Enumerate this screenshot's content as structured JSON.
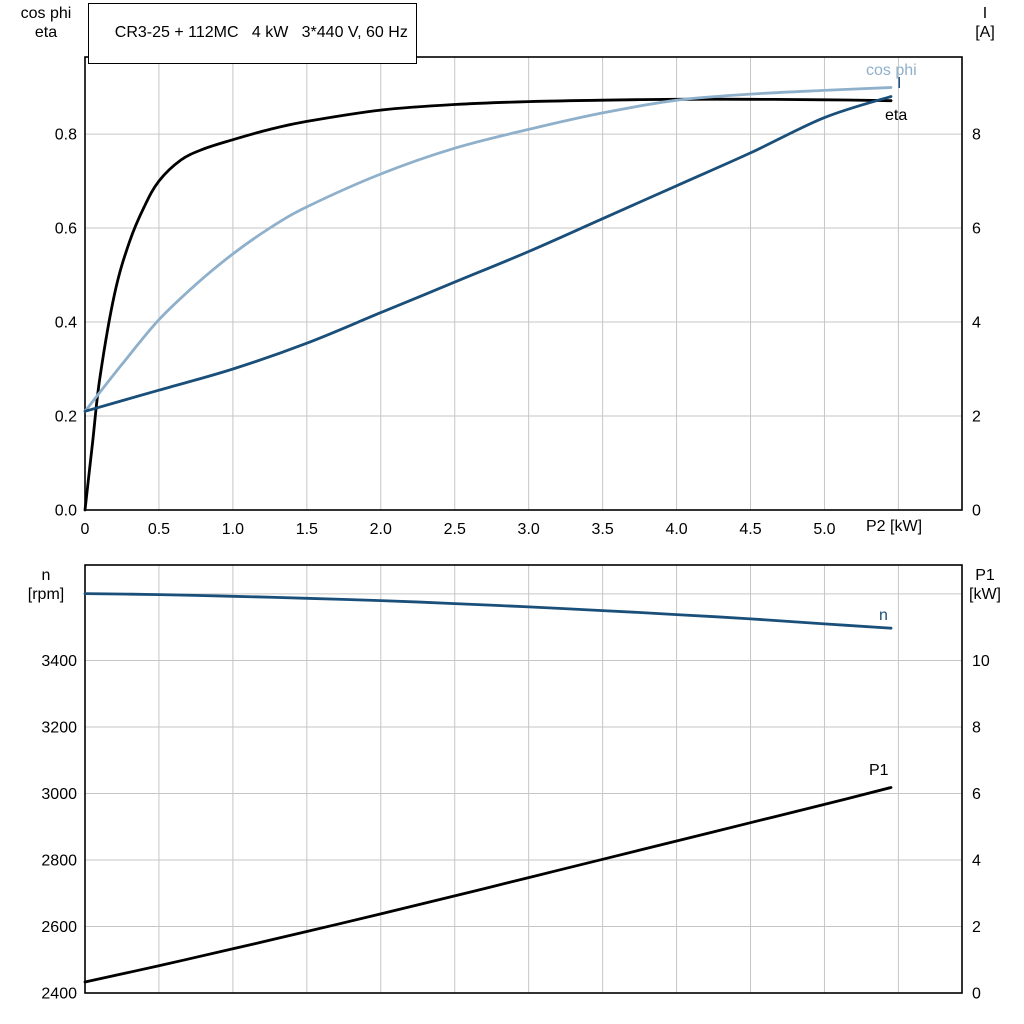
{
  "style": {
    "background": "#ffffff",
    "grid_color": "#c6c6c6",
    "frame_color": "#000000",
    "text_color": "#000000",
    "accent_dark_blue": "#1a4f7a",
    "accent_light_blue": "#8fb0cb"
  },
  "chart_data": [
    {
      "type": "line",
      "title": "CR3-25 + 112MC   4 kW   3*440 V, 60 Hz",
      "grid": true,
      "x_axis": {
        "label": "P2 [kW]",
        "min": 0,
        "max": 5.93,
        "ticks": [
          {
            "v": 0,
            "l": "0"
          },
          {
            "v": 0.5,
            "l": "0.5"
          },
          {
            "v": 1,
            "l": "1.0"
          },
          {
            "v": 1.5,
            "l": "1.5"
          },
          {
            "v": 2,
            "l": "2.0"
          },
          {
            "v": 2.5,
            "l": "2.5"
          },
          {
            "v": 3,
            "l": "3.0"
          },
          {
            "v": 3.5,
            "l": "3.5"
          },
          {
            "v": 4,
            "l": "4.0"
          },
          {
            "v": 4.5,
            "l": "4.5"
          },
          {
            "v": 5,
            "l": "5.0"
          },
          {
            "v": 5.5,
            "l": ""
          }
        ]
      },
      "y_left": {
        "header": [
          "cos phi",
          "eta"
        ],
        "min": 0,
        "max": 0.964,
        "ticks": [
          {
            "v": 0,
            "l": "0.0"
          },
          {
            "v": 0.2,
            "l": "0.2"
          },
          {
            "v": 0.4,
            "l": "0.4"
          },
          {
            "v": 0.6,
            "l": "0.6"
          },
          {
            "v": 0.8,
            "l": "0.8"
          }
        ]
      },
      "y_right": {
        "header": [
          "I",
          "[A]"
        ],
        "min": 0,
        "max": 9.64,
        "ticks": [
          {
            "v": 0,
            "l": "0"
          },
          {
            "v": 2,
            "l": "2"
          },
          {
            "v": 4,
            "l": "4"
          },
          {
            "v": 6,
            "l": "6"
          },
          {
            "v": 8,
            "l": "8"
          }
        ]
      },
      "series": [
        {
          "name": "eta",
          "axis": "left",
          "color": "#000000",
          "width": 2.8,
          "x": [
            0,
            0.05,
            0.1,
            0.2,
            0.3,
            0.4,
            0.5,
            0.65,
            0.8,
            1.0,
            1.25,
            1.5,
            2.0,
            2.5,
            3.0,
            3.5,
            4.0,
            4.5,
            5.0,
            5.45
          ],
          "y": [
            0,
            0.14,
            0.28,
            0.46,
            0.57,
            0.645,
            0.7,
            0.745,
            0.768,
            0.788,
            0.81,
            0.827,
            0.851,
            0.863,
            0.869,
            0.872,
            0.874,
            0.874,
            0.873,
            0.871
          ]
        },
        {
          "name": "cos phi",
          "axis": "left",
          "color": "#8fb0cb",
          "width": 2.8,
          "x": [
            0,
            0.25,
            0.5,
            0.75,
            1.0,
            1.25,
            1.5,
            2.0,
            2.5,
            3.0,
            3.5,
            4.0,
            4.5,
            5.0,
            5.45
          ],
          "y": [
            0.21,
            0.31,
            0.405,
            0.48,
            0.545,
            0.6,
            0.645,
            0.715,
            0.77,
            0.81,
            0.845,
            0.872,
            0.885,
            0.893,
            0.899
          ]
        },
        {
          "name": "I",
          "axis": "right",
          "color": "#1a4f7a",
          "width": 2.8,
          "x": [
            0,
            0.5,
            1.0,
            1.5,
            2.0,
            2.5,
            3.0,
            3.5,
            4.0,
            4.5,
            5.0,
            5.45
          ],
          "y": [
            2.1,
            2.55,
            3.0,
            3.55,
            4.2,
            4.85,
            5.5,
            6.2,
            6.9,
            7.6,
            8.35,
            8.8
          ]
        }
      ]
    },
    {
      "type": "line",
      "title": "",
      "grid": true,
      "x_axis": {
        "label": "",
        "min": 0,
        "max": 5.93,
        "ticks": [
          {
            "v": 0.5,
            "l": ""
          },
          {
            "v": 1,
            "l": ""
          },
          {
            "v": 1.5,
            "l": ""
          },
          {
            "v": 2,
            "l": ""
          },
          {
            "v": 2.5,
            "l": ""
          },
          {
            "v": 3,
            "l": ""
          },
          {
            "v": 3.5,
            "l": ""
          },
          {
            "v": 4,
            "l": ""
          },
          {
            "v": 4.5,
            "l": ""
          },
          {
            "v": 5,
            "l": ""
          },
          {
            "v": 5.5,
            "l": ""
          }
        ]
      },
      "y_left": {
        "header": [
          "n",
          "[rpm]"
        ],
        "min": 2400,
        "max": 3687,
        "ticks": [
          {
            "v": 2400,
            "l": "2400"
          },
          {
            "v": 2600,
            "l": "2600"
          },
          {
            "v": 2800,
            "l": "2800"
          },
          {
            "v": 3000,
            "l": "3000"
          },
          {
            "v": 3200,
            "l": "3200"
          },
          {
            "v": 3400,
            "l": "3400"
          },
          {
            "v": 3600,
            "l": ""
          }
        ]
      },
      "y_right": {
        "header": [
          "P1",
          "[kW]"
        ],
        "min": 0,
        "max": 12.87,
        "ticks": [
          {
            "v": 0,
            "l": "0"
          },
          {
            "v": 2,
            "l": "2"
          },
          {
            "v": 4,
            "l": "4"
          },
          {
            "v": 6,
            "l": "6"
          },
          {
            "v": 8,
            "l": "8"
          },
          {
            "v": 10,
            "l": "10"
          },
          {
            "v": 12,
            "l": ""
          }
        ]
      },
      "series": [
        {
          "name": "n",
          "axis": "left",
          "color": "#1a4f7a",
          "width": 2.8,
          "x": [
            0,
            0.5,
            1.0,
            1.5,
            2.0,
            2.5,
            3.0,
            3.5,
            4.0,
            4.5,
            5.0,
            5.45
          ],
          "y": [
            3601,
            3598,
            3593,
            3587,
            3580,
            3571,
            3561,
            3550,
            3538,
            3525,
            3510,
            3497
          ]
        },
        {
          "name": "P1",
          "axis": "right",
          "color": "#000000",
          "width": 2.8,
          "x": [
            0,
            0.5,
            1.0,
            1.5,
            2.0,
            2.5,
            3.0,
            3.5,
            4.0,
            4.5,
            5.0,
            5.45
          ],
          "y": [
            0.33,
            0.82,
            1.33,
            1.85,
            2.38,
            2.92,
            3.47,
            4.02,
            4.57,
            5.12,
            5.67,
            6.18
          ]
        }
      ]
    }
  ]
}
